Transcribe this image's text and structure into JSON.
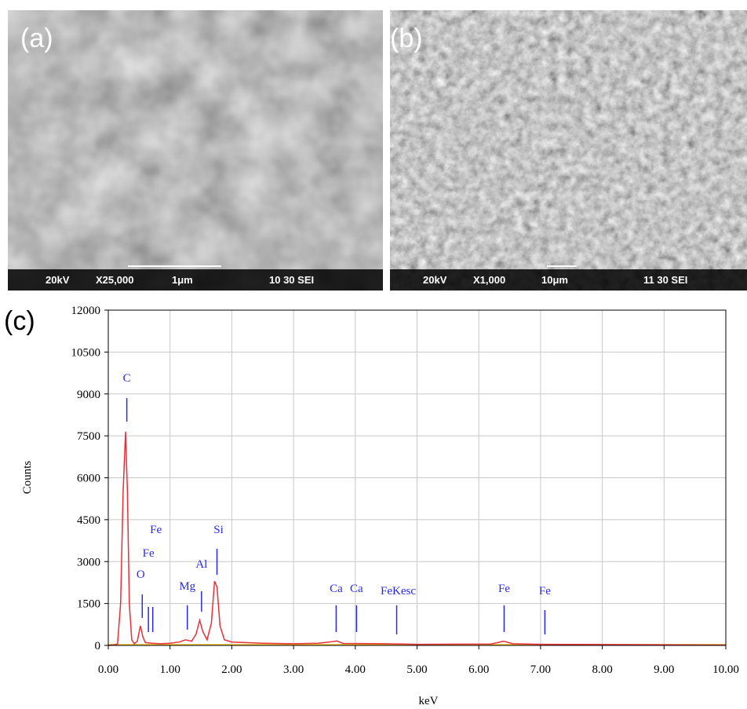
{
  "panels": [
    {
      "label": "(a)",
      "footer": [
        "20kV",
        "X25,000",
        "1μm",
        "10 30 SEI"
      ]
    },
    {
      "label": "(b)",
      "footer": [
        "20kV",
        "X1,000",
        "10μm",
        "11 30 SEI"
      ]
    }
  ],
  "chart_data": {
    "type": "line",
    "panel_label": "(c)",
    "xlabel": "keV",
    "ylabel": "Counts",
    "x": [
      0.0,
      0.1,
      0.15,
      0.2,
      0.24,
      0.28,
      0.31,
      0.34,
      0.38,
      0.42,
      0.47,
      0.52,
      0.56,
      0.6,
      0.7,
      0.85,
      1.0,
      1.15,
      1.25,
      1.35,
      1.42,
      1.48,
      1.53,
      1.6,
      1.67,
      1.72,
      1.76,
      1.81,
      1.88,
      2.0,
      2.5,
      3.0,
      3.4,
      3.65,
      3.7,
      3.8,
      4.5,
      5.0,
      6.2,
      6.4,
      6.55,
      7.0,
      8.0,
      9.0,
      10.0
    ],
    "series": [
      {
        "color": "#e8303a",
        "values": [
          0,
          20,
          60,
          1500,
          5500,
          7650,
          5500,
          1500,
          200,
          60,
          150,
          700,
          300,
          100,
          80,
          60,
          80,
          120,
          200,
          150,
          400,
          900,
          500,
          200,
          800,
          2300,
          2100,
          700,
          200,
          120,
          80,
          60,
          80,
          140,
          160,
          70,
          60,
          40,
          50,
          150,
          60,
          40,
          30,
          20,
          10
        ]
      }
    ],
    "markers": [
      {
        "label": "C",
        "x": 0.3
      },
      {
        "label": "O",
        "x": 0.55
      },
      {
        "label": "Fe",
        "x": 0.65
      },
      {
        "label": "Fe",
        "x": 0.72
      },
      {
        "label": "Mg",
        "x": 1.28
      },
      {
        "label": "Al",
        "x": 1.51
      },
      {
        "label": "Si",
        "x": 1.76
      },
      {
        "label": "Ca",
        "x": 3.69
      },
      {
        "label": "Ca",
        "x": 4.02
      },
      {
        "label": "FeKesc",
        "x": 4.67
      },
      {
        "label": "Fe",
        "x": 6.41
      },
      {
        "label": "Fe",
        "x": 7.07
      }
    ],
    "marker_color": "#2a2ae6",
    "xlim": [
      0,
      10
    ],
    "ylim": [
      0,
      12000
    ],
    "xticks": [
      {
        "value": 0,
        "label": "0.00"
      },
      {
        "value": 1,
        "label": "1.00"
      },
      {
        "value": 2,
        "label": "2.00"
      },
      {
        "value": 3,
        "label": "3.00"
      },
      {
        "value": 4,
        "label": "4.00"
      },
      {
        "value": 5,
        "label": "5.00"
      },
      {
        "value": 6,
        "label": "6.00"
      },
      {
        "value": 7,
        "label": "7.00"
      },
      {
        "value": 8,
        "label": "8.00"
      },
      {
        "value": 9,
        "label": "9.00"
      },
      {
        "value": 10,
        "label": "10.00"
      }
    ],
    "yticks": [
      0,
      1500,
      3000,
      4500,
      6000,
      7500,
      9000,
      10500,
      12000
    ],
    "grid": true
  }
}
